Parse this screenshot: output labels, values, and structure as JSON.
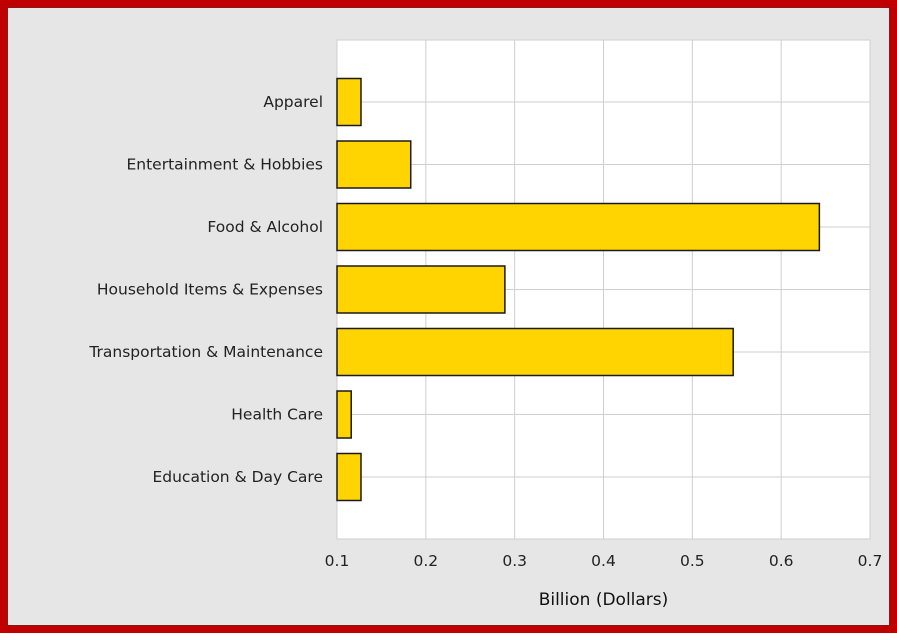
{
  "colors": {
    "frame_border": "#c00000",
    "background": "#e6e6e6",
    "plot_background": "#ffffff",
    "grid": "#cfcfcf",
    "bar_fill": "#ffd400",
    "bar_stroke": "#1a1a1a"
  },
  "chart_data": {
    "type": "bar",
    "orientation": "horizontal",
    "categories": [
      "Apparel",
      "Entertainment & Hobbies",
      "Food & Alcohol",
      "Household Items & Expenses",
      "Transportation & Maintenance",
      "Health Care",
      "Education & Day Care"
    ],
    "values": [
      0.127,
      0.183,
      0.643,
      0.289,
      0.546,
      0.116,
      0.127
    ],
    "xlabel": "Billion (Dollars)",
    "ylabel": "",
    "xlim": [
      0.1,
      0.7
    ],
    "xticks": [
      "0.1",
      "0.2",
      "0.3",
      "0.4",
      "0.5",
      "0.6",
      "0.7"
    ],
    "grid": true,
    "legend": "none"
  }
}
